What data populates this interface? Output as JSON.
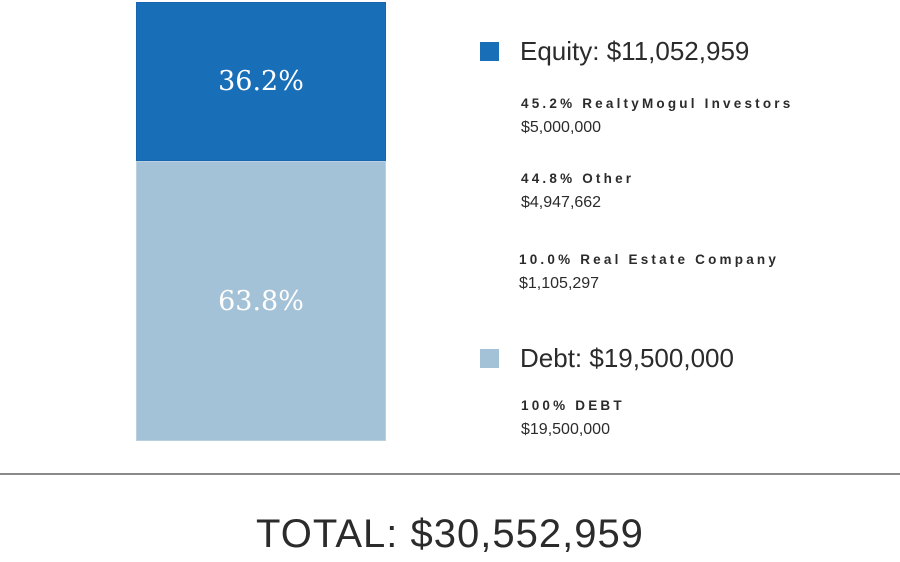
{
  "colors": {
    "equity": "#196eb8",
    "debt": "#a4c2d7"
  },
  "chart_data": {
    "type": "bar",
    "stacked": true,
    "series": [
      {
        "name": "Equity",
        "value": 36.2,
        "value_label": "36.2%",
        "amount": 11052959,
        "color": "#196eb8"
      },
      {
        "name": "Debt",
        "value": 63.8,
        "value_label": "63.8%",
        "amount": 19500000,
        "color": "#a4c2d7"
      }
    ],
    "legend": [
      {
        "key": "equity",
        "label": "Equity: $11,052,959",
        "breakdown": [
          {
            "percent_label": "45.2% RealtyMogul Investors",
            "amount_label": "$5,000,000"
          },
          {
            "percent_label": "44.8% Other",
            "amount_label": "$4,947,662"
          },
          {
            "percent_label": "10.0% Real Estate Company",
            "amount_label": "$1,105,297"
          }
        ]
      },
      {
        "key": "debt",
        "label": "Debt: $19,500,000",
        "breakdown": [
          {
            "percent_label": "100% DEBT",
            "amount_label": "$19,500,000"
          }
        ]
      }
    ],
    "legend_position": "right",
    "total_label": "TOTAL: $30,552,959"
  }
}
